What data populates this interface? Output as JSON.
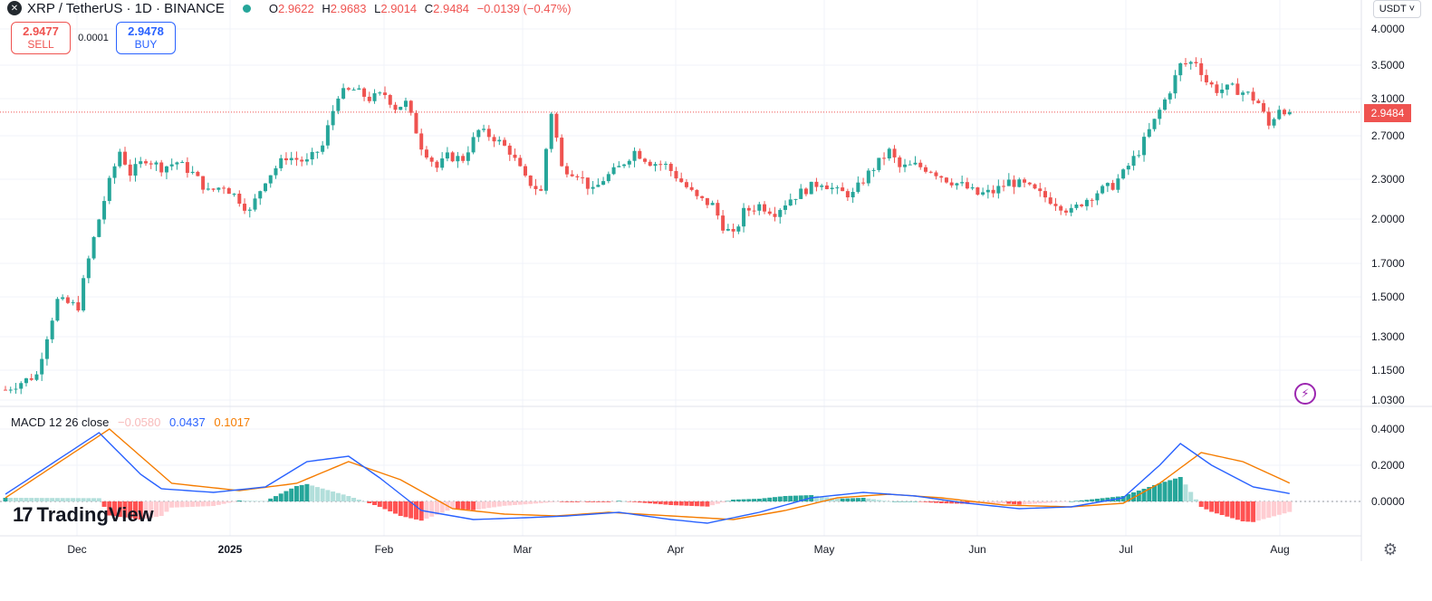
{
  "header": {
    "symbol": "XRP / TetherUS · 1D · BINANCE",
    "o_label": "O",
    "o_value": "2.9622",
    "h_label": "H",
    "h_value": "2.9683",
    "l_label": "L",
    "l_value": "2.9014",
    "c_label": "C",
    "c_value": "2.9484",
    "change": "−0.0139 (−0.47%)",
    "logo_icon": "xrp-logo-icon",
    "status_color": "#26a69a"
  },
  "trade": {
    "sell_price": "2.9477",
    "sell_label": "SELL",
    "spread": "0.0001",
    "buy_price": "2.9478",
    "buy_label": "BUY"
  },
  "currency_selector": "USDT ˅",
  "last_price_tag": "2.9484",
  "colors": {
    "up": "#26a69a",
    "down": "#ef5350",
    "macd": "#2962ff",
    "signal": "#f57c00"
  },
  "macd_legend": {
    "name": "MACD 12 26 close",
    "hist": "−0.0580",
    "macd": "0.0437",
    "signal": "0.1017"
  },
  "branding": {
    "name": "TradingView",
    "mark": "17"
  },
  "chart_data": {
    "type": "candlestick",
    "price_axis_ticks": [
      "4.0000",
      "3.5000",
      "3.1000",
      "2.7000",
      "2.3000",
      "2.0000",
      "1.7000",
      "1.5000",
      "1.3000",
      "1.1500",
      "1.0300"
    ],
    "macd_axis_ticks": [
      "0.4000",
      "0.2000",
      "0.0000"
    ],
    "time_labels": [
      "Dec",
      "2025",
      "Feb",
      "Mar",
      "Apr",
      "May",
      "Jun",
      "Jul",
      "Aug"
    ],
    "last_price": 2.9484,
    "price_keyframes": [
      [
        0,
        1.07
      ],
      [
        6,
        1.13
      ],
      [
        10,
        1.48
      ],
      [
        14,
        1.45
      ],
      [
        18,
        2.0
      ],
      [
        22,
        2.55
      ],
      [
        24,
        2.35
      ],
      [
        27,
        2.48
      ],
      [
        30,
        2.4
      ],
      [
        33,
        2.45
      ],
      [
        36,
        2.35
      ],
      [
        39,
        2.2
      ],
      [
        42,
        2.25
      ],
      [
        45,
        2.14
      ],
      [
        47,
        2.05
      ],
      [
        50,
        2.3
      ],
      [
        54,
        2.5
      ],
      [
        58,
        2.45
      ],
      [
        61,
        2.6
      ],
      [
        64,
        3.15
      ],
      [
        67,
        3.2
      ],
      [
        70,
        3.1
      ],
      [
        73,
        3.15
      ],
      [
        75,
        3.0
      ],
      [
        77,
        3.05
      ],
      [
        80,
        2.6
      ],
      [
        83,
        2.4
      ],
      [
        85,
        2.5
      ],
      [
        88,
        2.48
      ],
      [
        91,
        2.75
      ],
      [
        94,
        2.68
      ],
      [
        97,
        2.55
      ],
      [
        100,
        2.3
      ],
      [
        103,
        2.2
      ],
      [
        105,
        2.95
      ],
      [
        107,
        2.4
      ],
      [
        110,
        2.35
      ],
      [
        113,
        2.2
      ],
      [
        115,
        2.3
      ],
      [
        118,
        2.4
      ],
      [
        121,
        2.55
      ],
      [
        124,
        2.45
      ],
      [
        127,
        2.42
      ],
      [
        130,
        2.28
      ],
      [
        133,
        2.15
      ],
      [
        136,
        2.1
      ],
      [
        138,
        1.95
      ],
      [
        140,
        1.88
      ],
      [
        142,
        2.05
      ],
      [
        145,
        2.1
      ],
      [
        148,
        2.05
      ],
      [
        151,
        2.15
      ],
      [
        154,
        2.22
      ],
      [
        157,
        2.28
      ],
      [
        160,
        2.2
      ],
      [
        163,
        2.18
      ],
      [
        166,
        2.35
      ],
      [
        168,
        2.45
      ],
      [
        170,
        2.55
      ],
      [
        172,
        2.4
      ],
      [
        175,
        2.42
      ],
      [
        178,
        2.38
      ],
      [
        181,
        2.3
      ],
      [
        184,
        2.25
      ],
      [
        187,
        2.18
      ],
      [
        190,
        2.2
      ],
      [
        193,
        2.28
      ],
      [
        196,
        2.25
      ],
      [
        199,
        2.18
      ],
      [
        202,
        2.12
      ],
      [
        205,
        2.05
      ],
      [
        207,
        2.12
      ],
      [
        210,
        2.2
      ],
      [
        213,
        2.25
      ],
      [
        215,
        2.35
      ],
      [
        218,
        2.55
      ],
      [
        221,
        2.85
      ],
      [
        224,
        3.2
      ],
      [
        226,
        3.5
      ],
      [
        229,
        3.55
      ],
      [
        231,
        3.3
      ],
      [
        233,
        3.2
      ],
      [
        236,
        3.22
      ],
      [
        239,
        3.15
      ],
      [
        241,
        3.05
      ],
      [
        243,
        2.8
      ],
      [
        245,
        3.0
      ],
      [
        247,
        2.9484
      ]
    ],
    "macd_keyframes": [
      [
        0,
        0.04
      ],
      [
        18,
        0.38
      ],
      [
        26,
        0.15
      ],
      [
        30,
        0.07
      ],
      [
        40,
        0.05
      ],
      [
        50,
        0.08
      ],
      [
        58,
        0.22
      ],
      [
        66,
        0.25
      ],
      [
        72,
        0.13
      ],
      [
        80,
        -0.05
      ],
      [
        90,
        -0.1
      ],
      [
        100,
        -0.09
      ],
      [
        108,
        -0.08
      ],
      [
        118,
        -0.06
      ],
      [
        128,
        -0.1
      ],
      [
        135,
        -0.12
      ],
      [
        145,
        -0.06
      ],
      [
        155,
        0.02
      ],
      [
        165,
        0.05
      ],
      [
        175,
        0.03
      ],
      [
        185,
        -0.01
      ],
      [
        195,
        -0.04
      ],
      [
        205,
        -0.03
      ],
      [
        215,
        0.02
      ],
      [
        222,
        0.2
      ],
      [
        226,
        0.32
      ],
      [
        232,
        0.2
      ],
      [
        240,
        0.08
      ],
      [
        247,
        0.0437
      ]
    ],
    "signal_keyframes": [
      [
        0,
        0.02
      ],
      [
        20,
        0.4
      ],
      [
        32,
        0.1
      ],
      [
        45,
        0.06
      ],
      [
        56,
        0.1
      ],
      [
        66,
        0.22
      ],
      [
        76,
        0.12
      ],
      [
        86,
        -0.04
      ],
      [
        96,
        -0.07
      ],
      [
        106,
        -0.08
      ],
      [
        116,
        -0.06
      ],
      [
        128,
        -0.08
      ],
      [
        140,
        -0.1
      ],
      [
        150,
        -0.05
      ],
      [
        160,
        0.02
      ],
      [
        170,
        0.04
      ],
      [
        180,
        0.02
      ],
      [
        192,
        -0.02
      ],
      [
        205,
        -0.03
      ],
      [
        215,
        -0.01
      ],
      [
        222,
        0.1
      ],
      [
        230,
        0.27
      ],
      [
        238,
        0.22
      ],
      [
        247,
        0.1017
      ]
    ],
    "hist_last": -0.058
  }
}
